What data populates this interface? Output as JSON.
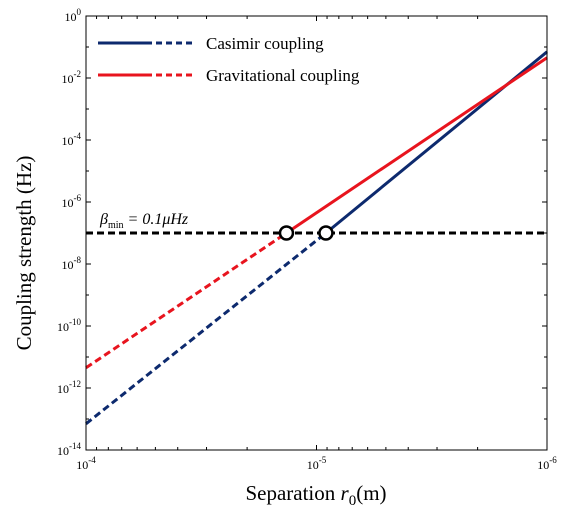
{
  "chart_data": {
    "type": "line",
    "xlabel": "Separation",
    "xlabel_symbol": "r",
    "xlabel_subscript": "0",
    "xlabel_unit": "(m)",
    "ylabel": "Coupling strength  (Hz)",
    "x_scale": "log",
    "y_scale": "log",
    "x_reversed": true,
    "xlim": [
      0.0001,
      1e-06
    ],
    "ylim": [
      1e-14,
      1
    ],
    "x_ticks": [
      {
        "base": "10",
        "exp": "-4"
      },
      {
        "base": "10",
        "exp": "-5"
      },
      {
        "base": "10",
        "exp": "-6"
      }
    ],
    "y_ticks": [
      {
        "base": "10",
        "exp": "0"
      },
      {
        "base": "10",
        "exp": "-2"
      },
      {
        "base": "10",
        "exp": "-4"
      },
      {
        "base": "10",
        "exp": "-6"
      },
      {
        "base": "10",
        "exp": "-8"
      },
      {
        "base": "10",
        "exp": "-10"
      },
      {
        "base": "10",
        "exp": "-12"
      },
      {
        "base": "10",
        "exp": "-14"
      }
    ],
    "legend_position": "top-left",
    "series": [
      {
        "name": "Casimir coupling",
        "color": "#0d2a6e",
        "style": "solid above threshold, dashed below",
        "x": [
          0.0001,
          9.1e-06,
          1e-06
        ],
        "y": [
          7e-14,
          1e-07,
          0.07
        ]
      },
      {
        "name": "Gravitational coupling",
        "color": "#e8141e",
        "style": "solid above threshold, dashed below",
        "x": [
          0.0001,
          1.35e-05,
          1e-06
        ],
        "y": [
          4.5e-12,
          1e-07,
          0.045
        ]
      }
    ],
    "threshold": {
      "y": 1e-07,
      "color": "#000000",
      "style": "dashed",
      "label_symbol": "β",
      "label_subscript": "min",
      "label_rest": " = 0.1μHz"
    },
    "crossing_markers": [
      {
        "series": "Gravitational coupling",
        "x": 1.35e-05,
        "y": 1e-07
      },
      {
        "series": "Casimir coupling",
        "x": 9.1e-06,
        "y": 1e-07
      }
    ]
  }
}
